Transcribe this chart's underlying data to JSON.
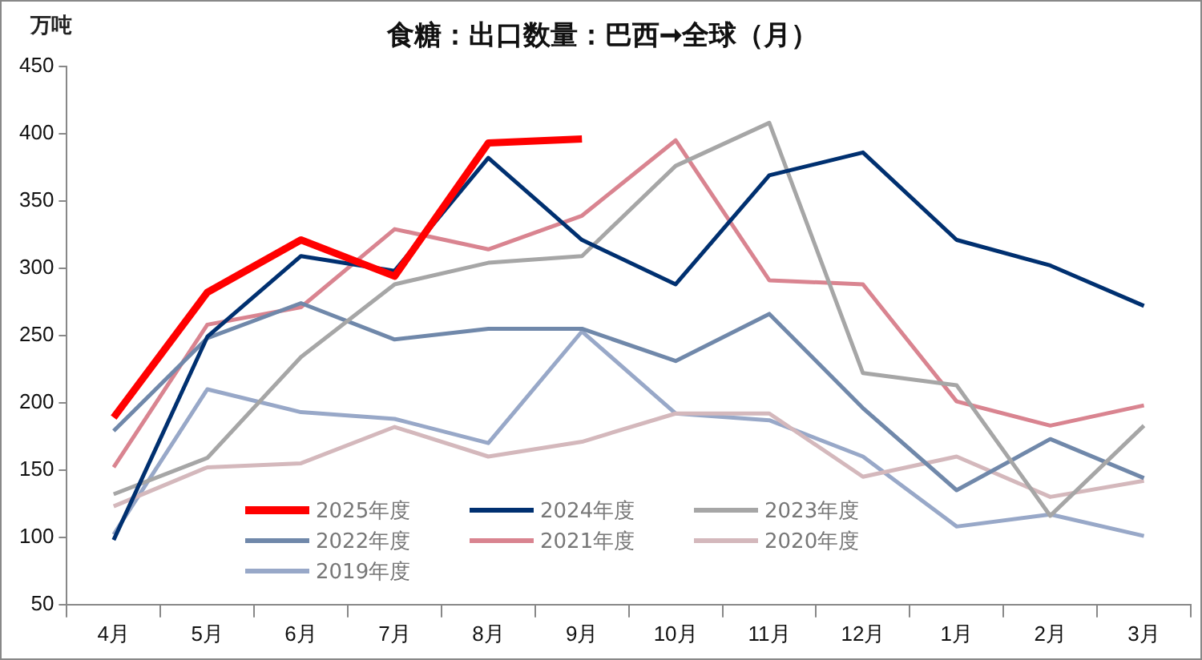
{
  "chart_data": {
    "type": "line",
    "title": "食糖：出口数量：巴西➞全球（月）",
    "ylabel": "万吨",
    "categories": [
      "4月",
      "5月",
      "6月",
      "7月",
      "8月",
      "9月",
      "10月",
      "11月",
      "12月",
      "1月",
      "2月",
      "3月"
    ],
    "ylim": [
      50,
      450
    ],
    "yticks": [
      50,
      100,
      150,
      200,
      250,
      300,
      350,
      400,
      450
    ],
    "grid": false,
    "legend": "bottom left",
    "marker": "none",
    "line_style": "solid",
    "series": [
      {
        "name": "2025年度",
        "color": "#ff0000",
        "values": [
          189,
          282,
          321,
          294,
          393,
          396,
          null,
          null,
          null,
          null,
          null,
          null
        ]
      },
      {
        "name": "2024年度",
        "color": "#003070",
        "values": [
          98,
          249,
          309,
          298,
          382,
          321,
          288,
          369,
          386,
          321,
          302,
          272
        ]
      },
      {
        "name": "2023年度",
        "color": "#a6a6a6",
        "values": [
          132,
          159,
          234,
          288,
          304,
          309,
          376,
          408,
          222,
          213,
          116,
          183
        ]
      },
      {
        "name": "2022年度",
        "color": "#7088aa",
        "values": [
          179,
          248,
          274,
          247,
          255,
          255,
          231,
          266,
          196,
          135,
          173,
          144
        ]
      },
      {
        "name": "2021年度",
        "color": "#d98490",
        "values": [
          152,
          258,
          271,
          329,
          314,
          339,
          395,
          291,
          288,
          201,
          183,
          198
        ]
      },
      {
        "name": "2020年度",
        "color": "#d4b8bc",
        "values": [
          123,
          152,
          155,
          182,
          160,
          171,
          192,
          192,
          145,
          160,
          130,
          142
        ]
      },
      {
        "name": "2019年度",
        "color": "#98a8c8",
        "values": [
          102,
          210,
          193,
          188,
          170,
          253,
          192,
          187,
          160,
          108,
          117,
          101
        ]
      }
    ]
  }
}
